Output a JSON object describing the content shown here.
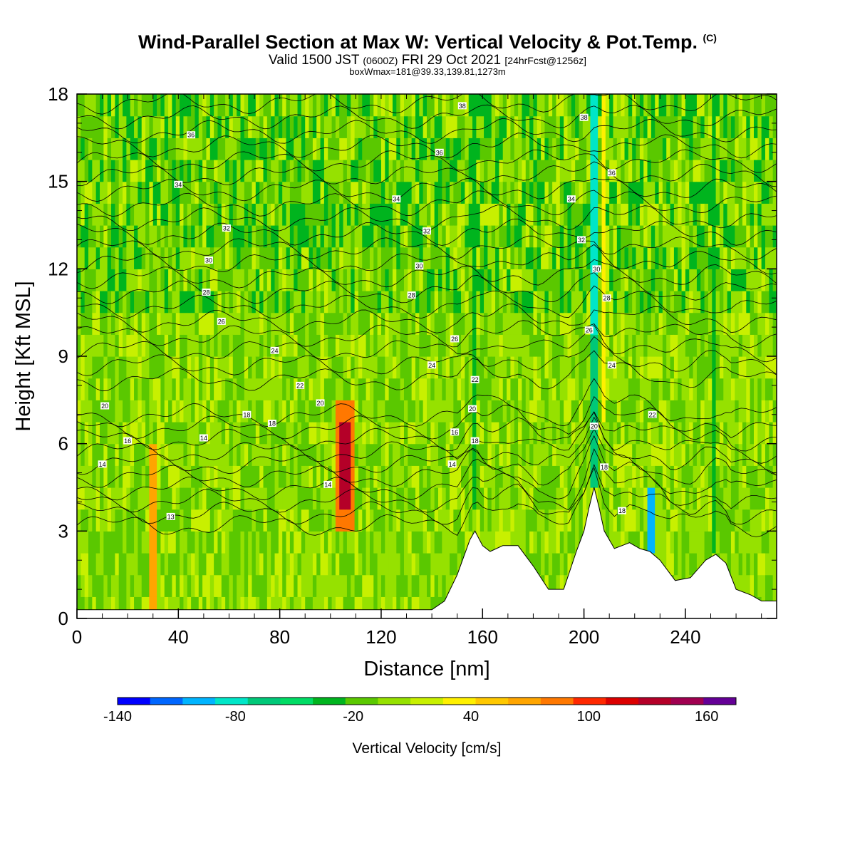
{
  "title": {
    "main": "Wind-Parallel Section at Max W: Vertical Velocity & Pot.Temp.",
    "mark": "(C)",
    "valid_prefix": "Valid 1500 JST",
    "valid_utc": "(0600Z)",
    "valid_date": "FRI 29 Oct 2021",
    "fcst": "[24hrFcst@1256z]",
    "box": "boxWmax=181@39.33,139.81,1273m"
  },
  "chart_data": {
    "type": "heatmap",
    "title": "Wind-Parallel Section at Max W: Vertical Velocity & Pot.Temp.",
    "xlabel": "Distance [nm]",
    "ylabel": "Height [Kft MSL]",
    "xlim": [
      0,
      276
    ],
    "ylim": [
      0,
      18
    ],
    "xticks": [
      0,
      40,
      80,
      120,
      160,
      200,
      240
    ],
    "yticks": [
      0,
      3,
      6,
      9,
      12,
      15,
      18
    ],
    "grid": false,
    "terrain_kft": [
      [
        0,
        0.3
      ],
      [
        20,
        0.3
      ],
      [
        140,
        0.3
      ],
      [
        145,
        0.6
      ],
      [
        150,
        1.5
      ],
      [
        155,
        2.7
      ],
      [
        157,
        3.0
      ],
      [
        160,
        2.5
      ],
      [
        163,
        2.3
      ],
      [
        168,
        2.5
      ],
      [
        174,
        2.5
      ],
      [
        180,
        1.8
      ],
      [
        186,
        1.0
      ],
      [
        192,
        1.0
      ],
      [
        197,
        2.3
      ],
      [
        200,
        3.0
      ],
      [
        202,
        3.8
      ],
      [
        204,
        4.5
      ],
      [
        206,
        3.8
      ],
      [
        208,
        3.0
      ],
      [
        212,
        2.4
      ],
      [
        218,
        2.6
      ],
      [
        222,
        2.4
      ],
      [
        226,
        2.3
      ],
      [
        230,
        2.0
      ],
      [
        236,
        1.3
      ],
      [
        242,
        1.4
      ],
      [
        248,
        2.0
      ],
      [
        252,
        2.2
      ],
      [
        256,
        1.9
      ],
      [
        260,
        1.0
      ],
      [
        266,
        0.8
      ],
      [
        270,
        0.6
      ],
      [
        276,
        0.6
      ]
    ],
    "colorbar": {
      "label": "Vertical Velocity [cm/s]",
      "tick_labels": [
        "-140",
        "-80",
        "-20",
        "40",
        "100",
        "160"
      ],
      "tick_values": [
        -140,
        -80,
        -20,
        40,
        100,
        160
      ],
      "bounds": [
        -140,
        175
      ],
      "colors": [
        "#0000ff",
        "#0066ff",
        "#00b4ff",
        "#00e6c8",
        "#00c878",
        "#00dc64",
        "#00b41e",
        "#5ac800",
        "#96e100",
        "#c8f000",
        "#fff000",
        "#ffc800",
        "#ffa500",
        "#ff7800",
        "#ff2800",
        "#dc0000",
        "#b40028",
        "#a00050",
        "#640096"
      ]
    },
    "theta_contour_labels": [
      {
        "v": 14,
        "x": 10,
        "y": 5.3
      },
      {
        "v": 16,
        "x": 20,
        "y": 6.1
      },
      {
        "v": 20,
        "x": 11,
        "y": 7.3
      },
      {
        "v": 14,
        "x": 50,
        "y": 6.2
      },
      {
        "v": 18,
        "x": 67,
        "y": 7.0
      },
      {
        "v": 18,
        "x": 77,
        "y": 6.7
      },
      {
        "v": 22,
        "x": 88,
        "y": 8.0
      },
      {
        "v": 20,
        "x": 96,
        "y": 7.4
      },
      {
        "v": 24,
        "x": 78,
        "y": 9.2
      },
      {
        "v": 26,
        "x": 57,
        "y": 10.2
      },
      {
        "v": 28,
        "x": 51,
        "y": 11.2
      },
      {
        "v": 30,
        "x": 52,
        "y": 12.3
      },
      {
        "v": 32,
        "x": 59,
        "y": 13.4
      },
      {
        "v": 34,
        "x": 40,
        "y": 14.9
      },
      {
        "v": 36,
        "x": 45,
        "y": 16.6
      },
      {
        "v": 14,
        "x": 99,
        "y": 4.6
      },
      {
        "v": 13,
        "x": 37,
        "y": 3.5
      },
      {
        "v": 38,
        "x": 152,
        "y": 17.6
      },
      {
        "v": 36,
        "x": 143,
        "y": 16.0
      },
      {
        "v": 34,
        "x": 126,
        "y": 14.4
      },
      {
        "v": 32,
        "x": 138,
        "y": 13.3
      },
      {
        "v": 30,
        "x": 135,
        "y": 12.1
      },
      {
        "v": 28,
        "x": 132,
        "y": 11.1
      },
      {
        "v": 26,
        "x": 149,
        "y": 9.6
      },
      {
        "v": 24,
        "x": 140,
        "y": 8.7
      },
      {
        "v": 22,
        "x": 157,
        "y": 8.2
      },
      {
        "v": 20,
        "x": 156,
        "y": 7.2
      },
      {
        "v": 16,
        "x": 149,
        "y": 6.4
      },
      {
        "v": 18,
        "x": 157,
        "y": 6.1
      },
      {
        "v": 14,
        "x": 148,
        "y": 5.3
      },
      {
        "v": 38,
        "x": 200,
        "y": 17.2
      },
      {
        "v": 36,
        "x": 211,
        "y": 15.3
      },
      {
        "v": 34,
        "x": 195,
        "y": 14.4
      },
      {
        "v": 32,
        "x": 199,
        "y": 13.0
      },
      {
        "v": 30,
        "x": 205,
        "y": 12.0
      },
      {
        "v": 28,
        "x": 209,
        "y": 11.0
      },
      {
        "v": 26,
        "x": 202,
        "y": 9.9
      },
      {
        "v": 24,
        "x": 211,
        "y": 8.7
      },
      {
        "v": 22,
        "x": 227,
        "y": 7.0
      },
      {
        "v": 20,
        "x": 204,
        "y": 6.6
      },
      {
        "v": 18,
        "x": 208,
        "y": 5.2
      },
      {
        "v": 18,
        "x": 215,
        "y": 3.7
      }
    ]
  }
}
